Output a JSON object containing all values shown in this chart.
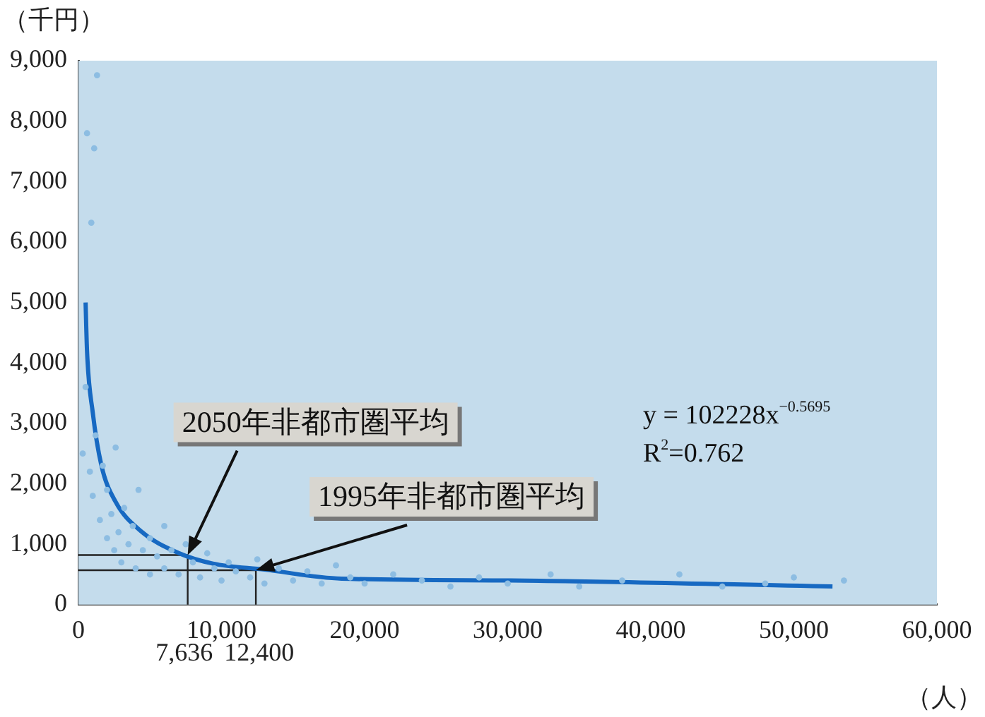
{
  "chart_data": {
    "type": "scatter",
    "xlabel": "（人）",
    "ylabel": "（千円）",
    "xlim": [
      0,
      60000
    ],
    "ylim": [
      0,
      9000
    ],
    "xticks": [
      0,
      {
        "value": 10000,
        "label": "10,000"
      },
      {
        "value": 20000,
        "label": "20,000"
      },
      {
        "value": 30000,
        "label": "30,000"
      },
      {
        "value": 40000,
        "label": "40,000"
      },
      {
        "value": 50000,
        "label": "50,000"
      },
      {
        "value": 60000,
        "label": "60,000"
      }
    ],
    "yticks": [
      0,
      {
        "value": 1000,
        "label": "1,000"
      },
      {
        "value": 2000,
        "label": "2,000"
      },
      {
        "value": 3000,
        "label": "3,000"
      },
      {
        "value": 4000,
        "label": "4,000"
      },
      {
        "value": 5000,
        "label": "5,000"
      },
      {
        "value": 6000,
        "label": "6,000"
      },
      {
        "value": 7000,
        "label": "7,000"
      },
      {
        "value": 8000,
        "label": "8,000"
      },
      {
        "value": 9000,
        "label": "9,000"
      }
    ],
    "grid": false,
    "legend": false,
    "marker": "circle",
    "series": [
      {
        "type": "scatter",
        "color": "#8dbde2",
        "x": [
          300,
          500,
          600,
          900,
          1100,
          1300,
          800,
          1000,
          1200,
          1500,
          1700,
          2000,
          2000,
          2300,
          2500,
          2600,
          2800,
          3000,
          3200,
          3500,
          3800,
          4000,
          4200,
          4500,
          5000,
          5000,
          5500,
          6000,
          6000,
          6500,
          7000,
          7500,
          8000,
          8500,
          9000,
          9500,
          10000,
          10500,
          11000,
          12000,
          12500,
          13000,
          14000,
          15000,
          16000,
          17000,
          18000,
          19000,
          20000,
          22000,
          24000,
          26000,
          28000,
          30000,
          33000,
          35000,
          38000,
          42000,
          45000,
          48000,
          50000,
          53500
        ],
        "values": [
          2500,
          3600,
          7800,
          6320,
          7550,
          8760,
          2200,
          1800,
          2800,
          1400,
          2300,
          1100,
          1900,
          1500,
          900,
          2600,
          1200,
          700,
          1600,
          1000,
          1300,
          600,
          1900,
          900,
          1100,
          500,
          800,
          1300,
          600,
          900,
          500,
          1000,
          700,
          450,
          850,
          600,
          400,
          700,
          550,
          450,
          750,
          350,
          600,
          400,
          550,
          350,
          650,
          450,
          350,
          500,
          400,
          300,
          450,
          350,
          500,
          300,
          400,
          500,
          300,
          350,
          450,
          400
        ]
      },
      {
        "type": "line",
        "color": "#1769c2",
        "marker": "none",
        "line_style": "solid",
        "x": [
          500,
          600,
          1000,
          1600,
          2600,
          4300,
          7050,
          9400,
          13000,
          18400,
          30200,
          52700
        ],
        "values": [
          5000,
          4200,
          3180,
          2310,
          1700,
          1230,
          850,
          680,
          580,
          430,
          400,
          300
        ]
      }
    ],
    "ref_lines": [
      {
        "axis": "x",
        "value": 7636,
        "label": "7,636",
        "color": "#222222"
      },
      {
        "axis": "y",
        "value": 820,
        "color": "#222222"
      },
      {
        "axis": "x",
        "value": 12400,
        "label": "12,400",
        "color": "#222222"
      },
      {
        "axis": "y",
        "value": 570,
        "color": "#222222"
      }
    ],
    "annotations": [
      {
        "text": "2050年非都市圏平均",
        "x": 7636,
        "y": 820
      },
      {
        "text": "1995年非都市圏平均",
        "x": 12400,
        "y": 570
      },
      "y = 102228x$^{−0.5695}$",
      "R$^{2}$=0.762"
    ]
  }
}
